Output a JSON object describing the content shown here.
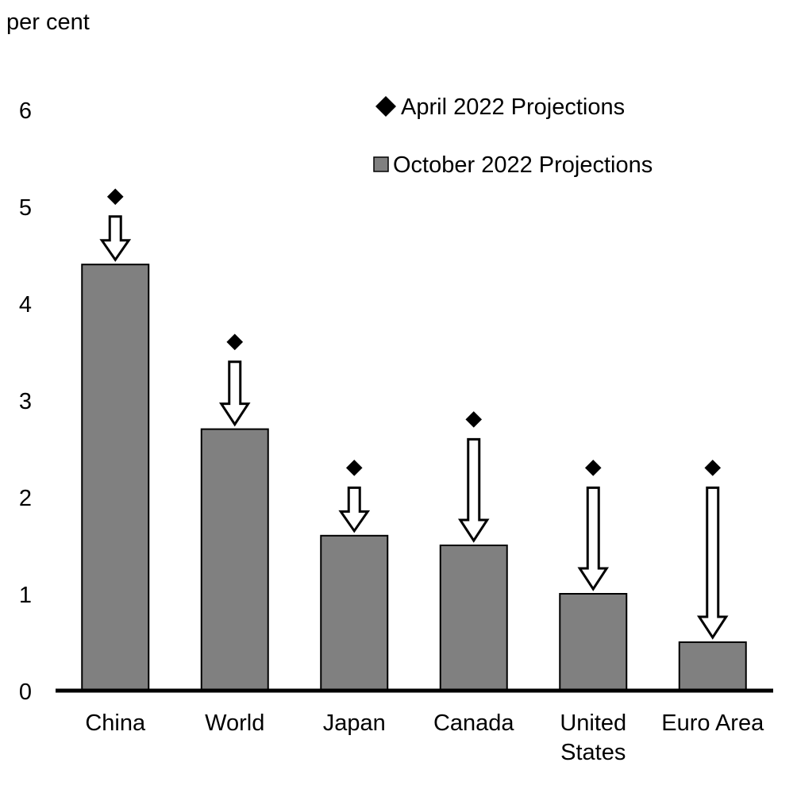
{
  "chart_data": {
    "type": "bar",
    "ylabel": "per cent",
    "ylim": [
      0,
      6
    ],
    "yticks": [
      0,
      1,
      2,
      3,
      4,
      5,
      6
    ],
    "grid": false,
    "legend_position": "top-right",
    "categories": [
      [
        "China"
      ],
      [
        "World"
      ],
      [
        "Japan"
      ],
      [
        "Canada"
      ],
      [
        "United",
        "States"
      ],
      [
        "Euro Area"
      ]
    ],
    "series": [
      {
        "name": "October 2022 Projections",
        "marker": "bar",
        "color": "#808080",
        "values": [
          4.4,
          2.7,
          1.6,
          1.5,
          1.0,
          0.5
        ]
      },
      {
        "name": "April 2022 Projections",
        "marker": "diamond",
        "color": "#000000",
        "values": [
          5.1,
          3.6,
          2.3,
          2.8,
          2.3,
          2.3
        ]
      }
    ],
    "legend": [
      {
        "name": "April 2022 Projections",
        "marker": "diamond"
      },
      {
        "name": "October 2022 Projections",
        "marker": "square"
      }
    ],
    "annotations": "downward arrows from April 2022 markers to October 2022 bars"
  }
}
